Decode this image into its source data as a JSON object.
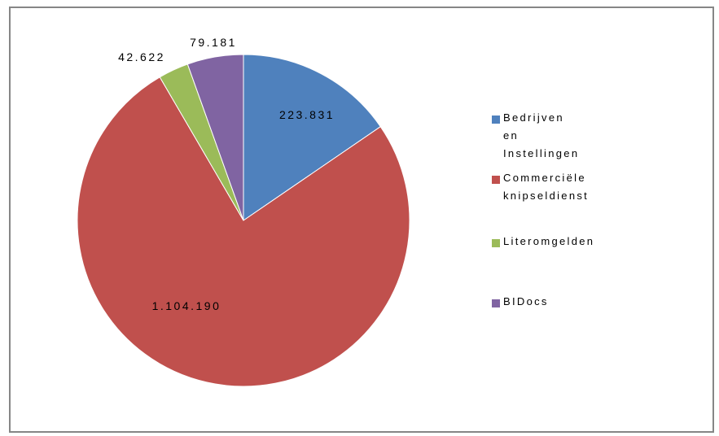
{
  "chart_data": {
    "type": "pie",
    "categories": [
      "Bedrijven en Instellingen",
      "Commerciële knipseldienst",
      "Literomgelden",
      "BIDocs"
    ],
    "values": [
      223831,
      1104190,
      42622,
      79181
    ],
    "value_labels": [
      "223.831",
      "1.104.190",
      "42.622",
      "79.181"
    ],
    "colors": [
      "#4F81BD",
      "#C0504D",
      "#9BBB59",
      "#8064A2"
    ],
    "legend_position": "right",
    "legend": [
      {
        "label": "Bedrijven en Instellingen",
        "color": "#4F81BD"
      },
      {
        "label": "Commerciële\nknipseldienst",
        "color": "#C0504D"
      },
      {
        "label": "Literomgelden",
        "color": "#9BBB59"
      },
      {
        "label": "BIDocs",
        "color": "#8064A2"
      }
    ]
  }
}
